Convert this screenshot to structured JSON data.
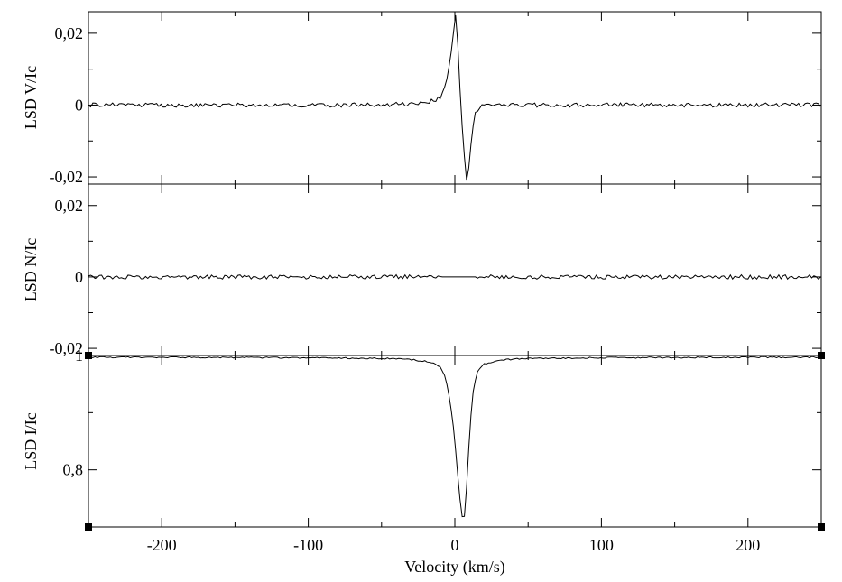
{
  "chart_data": [
    {
      "type": "line",
      "panel": "top",
      "ylabel": "LSD V/Ic",
      "xlim": [
        -250,
        250
      ],
      "ylim": [
        -0.022,
        0.026
      ],
      "ytick_values": [
        0.02,
        0,
        -0.02
      ],
      "ytick_labels": [
        "0,02",
        "0",
        "-0,02"
      ],
      "series": [
        {
          "x": [
            -250,
            -200,
            -150,
            -100,
            -50,
            -20,
            -10,
            -6,
            -3,
            -1,
            0,
            1,
            2,
            3,
            5,
            7,
            8,
            9,
            10,
            12,
            14,
            18,
            25,
            50,
            100,
            150,
            200,
            250
          ],
          "y": [
            0.0,
            0.0,
            0.0,
            0.0,
            0.0,
            0.0005,
            0.002,
            0.006,
            0.013,
            0.02,
            0.026,
            0.024,
            0.017,
            0.008,
            -0.006,
            -0.017,
            -0.021,
            -0.02,
            -0.015,
            -0.007,
            -0.002,
            -0.0005,
            0.0,
            0.0,
            0.0,
            0.0,
            0.0,
            0.0
          ]
        }
      ]
    },
    {
      "type": "line",
      "panel": "middle",
      "ylabel": "LSD N/Ic",
      "xlim": [
        -250,
        250
      ],
      "ylim": [
        -0.022,
        0.026
      ],
      "ytick_values": [
        0.02,
        0,
        -0.02
      ],
      "ytick_labels": [
        "0,02",
        "0",
        "-0,02"
      ],
      "series": [
        {
          "x": [
            -250,
            -150,
            -50,
            0,
            50,
            150,
            250
          ],
          "y": [
            0.0,
            0.0,
            0.0,
            0.0,
            0.0,
            0.0,
            0.0
          ]
        }
      ]
    },
    {
      "type": "line",
      "panel": "bottom",
      "ylabel": "LSD I/Ic",
      "xlabel": "Velocity (km/s)",
      "xlim": [
        -250,
        250
      ],
      "ylim": [
        0.7,
        1.0
      ],
      "ytick_values": [
        1.0,
        0.8
      ],
      "ytick_labels": [
        "1",
        "0,8"
      ],
      "xtick_values": [
        -200,
        -100,
        0,
        100,
        200
      ],
      "xtick_labels": [
        "-200",
        "-100",
        "0",
        "100",
        "200"
      ],
      "series": [
        {
          "x": [
            -250,
            -200,
            -100,
            -50,
            -30,
            -15,
            -10,
            -7,
            -5,
            -3,
            -1,
            0,
            2,
            4,
            5,
            6,
            7,
            8,
            10,
            12,
            15,
            20,
            30,
            50,
            100,
            200,
            250
          ],
          "y": [
            0.997,
            0.997,
            0.996,
            0.995,
            0.993,
            0.988,
            0.98,
            0.965,
            0.945,
            0.915,
            0.875,
            0.85,
            0.79,
            0.735,
            0.718,
            0.712,
            0.725,
            0.77,
            0.86,
            0.93,
            0.97,
            0.985,
            0.992,
            0.995,
            0.996,
            0.997,
            0.997
          ]
        }
      ]
    }
  ]
}
